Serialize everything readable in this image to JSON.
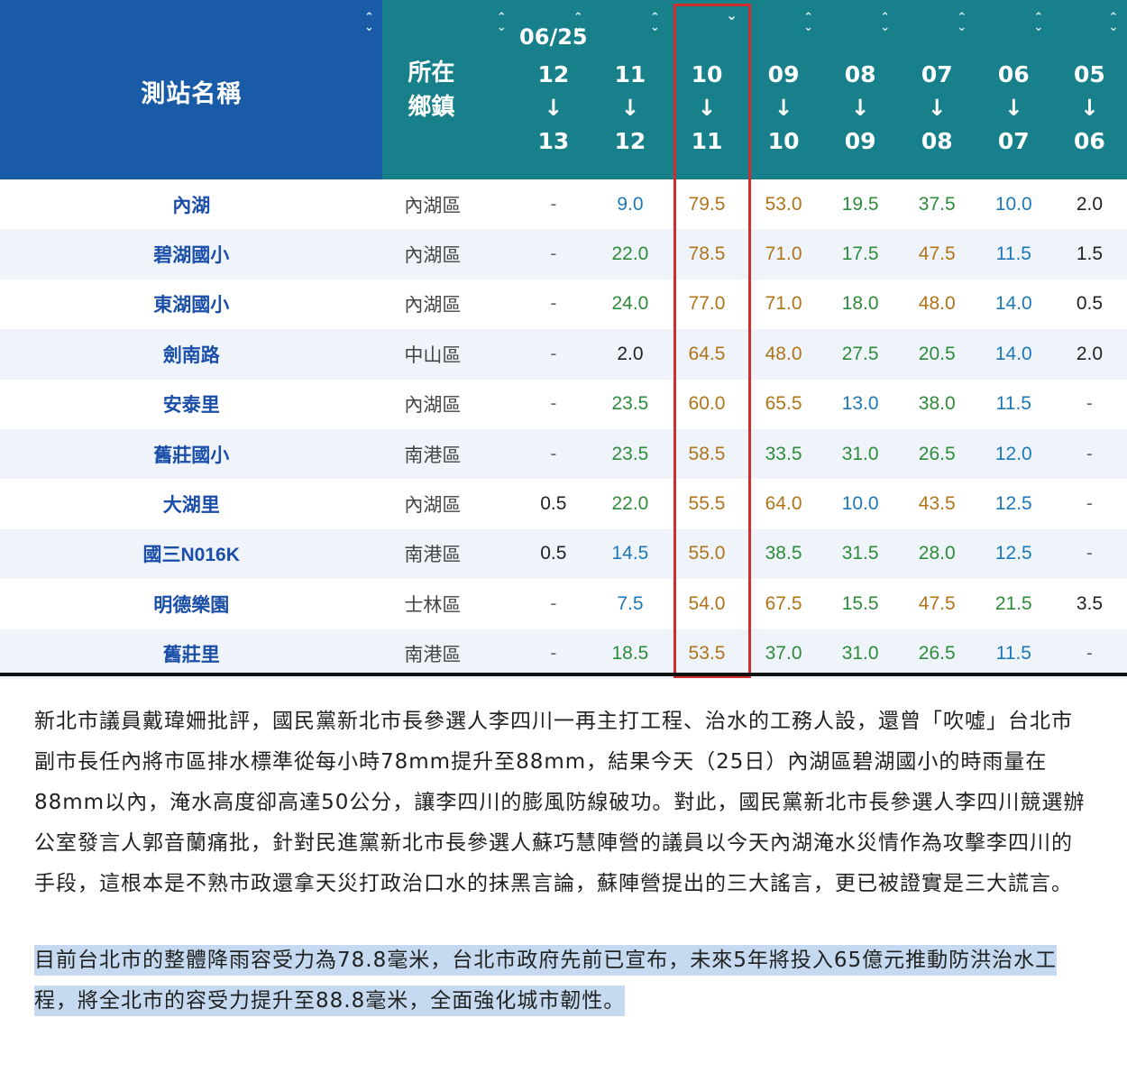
{
  "header": {
    "station_label": "測站名稱",
    "town_label_line1": "所在",
    "town_label_line2": "鄉鎮",
    "date_label": "06/25",
    "arrow": "↓",
    "sort_icon": "sort-updown-icon",
    "selected_sort_icon": "chevron-down-icon",
    "hour_columns": [
      {
        "from": "12",
        "to": "13"
      },
      {
        "from": "11",
        "to": "12"
      },
      {
        "from": "10",
        "to": "11"
      },
      {
        "from": "09",
        "to": "10"
      },
      {
        "from": "08",
        "to": "09"
      },
      {
        "from": "07",
        "to": "08"
      },
      {
        "from": "06",
        "to": "07"
      },
      {
        "from": "05",
        "to": "06"
      }
    ]
  },
  "rows": [
    {
      "station": "內湖",
      "town": "內湖區",
      "values": [
        "-",
        "9.0",
        "79.5",
        "53.0",
        "19.5",
        "37.5",
        "10.0",
        "2.0"
      ]
    },
    {
      "station": "碧湖國小",
      "town": "內湖區",
      "values": [
        "-",
        "22.0",
        "78.5",
        "71.0",
        "17.5",
        "47.5",
        "11.5",
        "1.5"
      ]
    },
    {
      "station": "東湖國小",
      "town": "內湖區",
      "values": [
        "-",
        "24.0",
        "77.0",
        "71.0",
        "18.0",
        "48.0",
        "14.0",
        "0.5"
      ]
    },
    {
      "station": "劍南路",
      "town": "中山區",
      "values": [
        "-",
        "2.0",
        "64.5",
        "48.0",
        "27.5",
        "20.5",
        "14.0",
        "2.0"
      ]
    },
    {
      "station": "安泰里",
      "town": "內湖區",
      "values": [
        "-",
        "23.5",
        "60.0",
        "65.5",
        "13.0",
        "38.0",
        "11.5",
        "-"
      ]
    },
    {
      "station": "舊莊國小",
      "town": "南港區",
      "values": [
        "-",
        "23.5",
        "58.5",
        "33.5",
        "31.0",
        "26.5",
        "12.0",
        "-"
      ]
    },
    {
      "station": "大湖里",
      "town": "內湖區",
      "values": [
        "0.5",
        "22.0",
        "55.5",
        "64.0",
        "10.0",
        "43.5",
        "12.5",
        "-"
      ]
    },
    {
      "station": "國三N016K",
      "town": "南港區",
      "values": [
        "0.5",
        "14.5",
        "55.0",
        "38.5",
        "31.5",
        "28.0",
        "12.5",
        "-"
      ]
    },
    {
      "station": "明德樂園",
      "town": "士林區",
      "values": [
        "-",
        "7.5",
        "54.0",
        "67.5",
        "15.5",
        "47.5",
        "21.5",
        "3.5"
      ]
    },
    {
      "station": "舊莊里",
      "town": "南港區",
      "values": [
        "-",
        "18.5",
        "53.5",
        "37.0",
        "31.0",
        "26.5",
        "11.5",
        "-"
      ]
    }
  ],
  "value_colors": {
    "dash": "#666666",
    "light_rain": "#222222",
    "blue": "#1d78b8",
    "green": "#2e8b3a",
    "brown": "#b0741a"
  },
  "highlight_color": "#d22d2d",
  "article": {
    "paragraph1": "新北市議員戴瑋姍批評，國民黨新北市長參選人李四川一再主打工程、治水的工務人設，還曾「吹噓」台北市副市長任內將市區排水標準從每小時78mm提升至88mm，結果今天（25日）內湖區碧湖國小的時雨量在88mm以內，淹水高度卻高達50公分，讓李四川的膨風防線破功。對此，國民黨新北市長參選人李四川競選辦公室發言人郭音蘭痛批，針對民進黨新北市長參選人蘇巧慧陣營的議員以今天內湖淹水災情作為攻擊李四川的手段，這根本是不熟市政還拿天災打政治口水的抹黑言論，蘇陣營提出的三大謠言，更已被證實是三大謊言。",
    "paragraph2": "目前台北市的整體降雨容受力為78.8毫米，台北市政府先前已宣布，未來5年將投入65億元推動防洪治水工程，將全北市的容受力提升至88.8毫米，全面強化城市韌性。"
  }
}
